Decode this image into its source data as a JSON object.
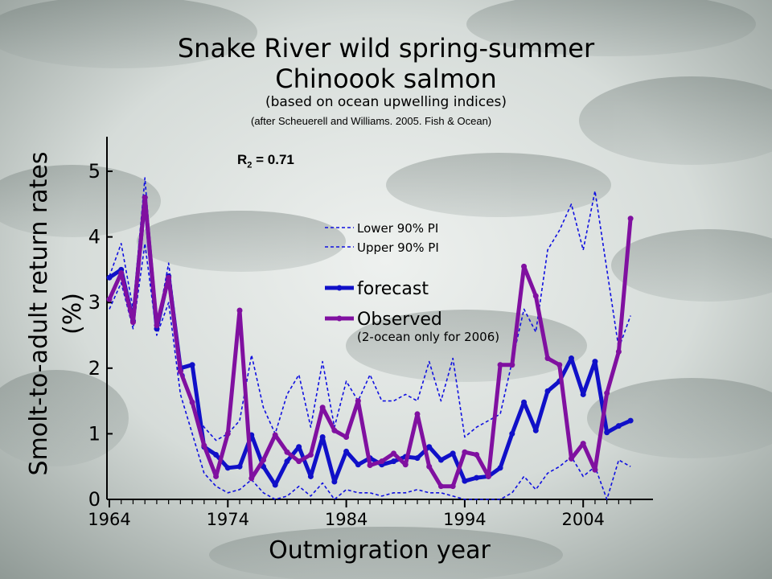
{
  "title_line1": "Snake River wild spring-summer",
  "title_line2": "Chinoook salmon",
  "subtitle": "(based on ocean upwelling indices)",
  "citation": "(after Scheuerell and Williams. 2005. Fish & Ocean)",
  "r2_label": "R",
  "r2_sup": "2",
  "r2_value": " = 0.71",
  "colors": {
    "forecast": "#1010c8",
    "observed": "#8010a0",
    "pi": "#1010e0"
  },
  "chart_data": {
    "type": "line",
    "title": "Snake River wild spring-summer Chinoook salmon",
    "xlabel": "Outmigration year",
    "ylabel_line1": "Smolt-to-adult return rates",
    "ylabel_line2": "(%)",
    "xlim": [
      1964,
      2009
    ],
    "ylim": [
      0,
      5.5
    ],
    "xticks": [
      1964,
      1974,
      1984,
      1994,
      2004
    ],
    "yticks": [
      0,
      1,
      2,
      3,
      4,
      5
    ],
    "legend_placement": "center-right",
    "x": [
      1964,
      1965,
      1966,
      1967,
      1968,
      1969,
      1970,
      1971,
      1972,
      1973,
      1974,
      1975,
      1976,
      1977,
      1978,
      1979,
      1980,
      1981,
      1982,
      1983,
      1984,
      1985,
      1986,
      1987,
      1988,
      1989,
      1990,
      1991,
      1992,
      1993,
      1994,
      1995,
      1996,
      1997,
      1998,
      1999,
      2000,
      2001,
      2002,
      2003,
      2004,
      2005,
      2006,
      2007,
      2008
    ],
    "series": [
      {
        "name": "Lower 90% PI",
        "style": "dashed",
        "values": [
          2.9,
          3.3,
          2.6,
          3.9,
          2.5,
          3.0,
          1.6,
          1.0,
          0.4,
          0.2,
          0.1,
          0.15,
          0.3,
          0.1,
          0.0,
          0.05,
          0.2,
          0.05,
          0.25,
          0.0,
          0.15,
          0.1,
          0.1,
          0.05,
          0.1,
          0.1,
          0.15,
          0.1,
          0.1,
          0.05,
          0.0,
          0.0,
          0.0,
          0.0,
          0.1,
          0.35,
          0.15,
          0.4,
          0.5,
          0.65,
          0.35,
          0.5,
          0.0,
          0.6,
          0.5
        ]
      },
      {
        "name": "Upper 90% PI",
        "style": "dashed",
        "values": [
          3.4,
          3.9,
          2.9,
          4.9,
          2.6,
          3.6,
          2.1,
          1.4,
          1.1,
          0.9,
          1.0,
          1.2,
          2.2,
          1.4,
          1.0,
          1.6,
          1.9,
          1.1,
          2.1,
          1.1,
          1.8,
          1.5,
          1.9,
          1.5,
          1.5,
          1.6,
          1.5,
          2.1,
          1.5,
          2.15,
          0.95,
          1.1,
          1.2,
          1.3,
          2.1,
          2.9,
          2.55,
          3.8,
          4.1,
          4.5,
          3.8,
          4.7,
          3.5,
          2.3,
          2.8
        ]
      },
      {
        "name": "forecast",
        "style": "solid-marker",
        "values": [
          3.38,
          3.5,
          2.72,
          4.6,
          2.6,
          3.4,
          2.0,
          2.05,
          0.8,
          0.68,
          0.48,
          0.5,
          0.98,
          0.5,
          0.22,
          0.58,
          0.8,
          0.35,
          0.95,
          0.27,
          0.73,
          0.53,
          0.63,
          0.53,
          0.58,
          0.65,
          0.63,
          0.8,
          0.6,
          0.7,
          0.28,
          0.33,
          0.35,
          0.48,
          1.0,
          1.48,
          1.05,
          1.65,
          1.8,
          2.15,
          1.6,
          2.1,
          1.02,
          1.12,
          1.2
        ]
      },
      {
        "name": "Observed",
        "style": "solid-marker",
        "values": [
          3.05,
          3.45,
          2.7,
          4.6,
          2.65,
          3.38,
          1.95,
          1.48,
          0.82,
          0.35,
          1.0,
          2.88,
          0.32,
          0.6,
          0.98,
          0.72,
          0.58,
          0.68,
          1.4,
          1.05,
          0.95,
          1.5,
          0.52,
          0.58,
          0.7,
          0.53,
          1.3,
          0.5,
          0.2,
          0.2,
          0.72,
          0.68,
          0.35,
          2.05,
          2.05,
          3.55,
          3.1,
          2.15,
          2.05,
          0.62,
          0.85,
          0.45,
          1.62,
          2.25,
          4.28
        ]
      }
    ],
    "legend": {
      "lower": "Lower 90% PI",
      "upper": "Upper 90% PI",
      "forecast": "forecast",
      "observed": "Observed",
      "observed_note": "(2-ocean only for 2006)"
    }
  }
}
